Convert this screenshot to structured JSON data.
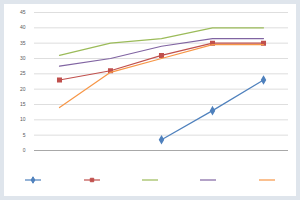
{
  "chart_data": {
    "type": "line",
    "categories": [
      null,
      null,
      null,
      null,
      null
    ],
    "series": [
      {
        "color": "#4f81bd",
        "marker": "diamond",
        "values": [
          null,
          null,
          3.5,
          13,
          23
        ]
      },
      {
        "color": "#c0504d",
        "marker": "square",
        "values": [
          23,
          26,
          31,
          35,
          35
        ]
      },
      {
        "color": "#9bbb59",
        "marker": "none",
        "values": [
          31,
          35,
          36.5,
          40,
          40
        ]
      },
      {
        "color": "#8064a2",
        "marker": "none",
        "values": [
          27.5,
          30,
          34,
          36.5,
          36.5
        ]
      },
      {
        "color": "#f79646",
        "marker": "none",
        "values": [
          14,
          25.5,
          30,
          34.5,
          34.5
        ]
      }
    ],
    "ylim": [
      0,
      45
    ],
    "yticks": [
      0,
      5,
      10,
      15,
      20,
      25,
      30,
      35,
      40,
      45
    ],
    "grid": true
  }
}
